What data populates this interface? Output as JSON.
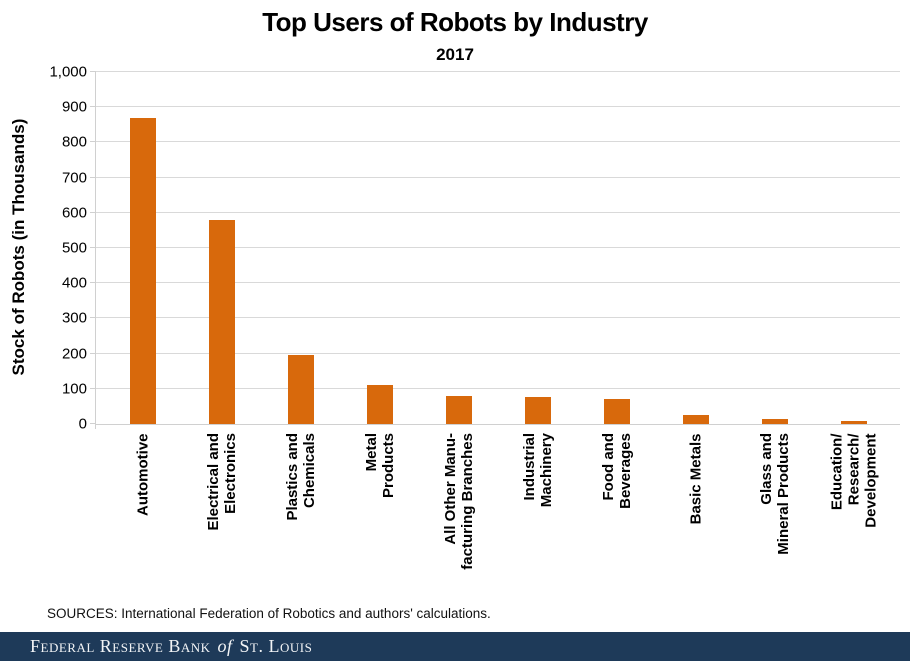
{
  "chart": {
    "title": "Top Users of Robots by Industry",
    "subtitle": "2017",
    "y_axis_title": "Stock of Robots (in Thousands)"
  },
  "chart_data": {
    "type": "bar",
    "title": "Top Users of Robots by Industry",
    "subtitle": "2017",
    "xlabel": "",
    "ylabel": "Stock of Robots (in Thousands)",
    "ylim": [
      0,
      1000
    ],
    "ytick_interval": 100,
    "ytick_labels": [
      "1,000",
      "900",
      "800",
      "700",
      "600",
      "500",
      "400",
      "300",
      "200",
      "100",
      "0"
    ],
    "grid": "horizontal",
    "legend": "none",
    "bar_color": "#d8690c",
    "gridline_color": "#d9d9d9",
    "axis_line_color": "#d0d0d0",
    "categories": [
      "Automotive",
      "Electrical and Electronics",
      "Plastics and Chemicals",
      "Metal Products",
      "All Other Manufacturing Branches",
      "Industrial Machinery",
      "Food and Beverages",
      "Basic Metals",
      "Glass and Mineral Products",
      "Education/Research/Development"
    ],
    "category_label_lines": [
      [
        "Automotive"
      ],
      [
        "Electrical and",
        "Electronics"
      ],
      [
        "Plastics and",
        "Chemicals"
      ],
      [
        "Metal",
        "Products"
      ],
      [
        "All Other Manu-",
        "facturing Branches"
      ],
      [
        "Industrial",
        "Machinery"
      ],
      [
        "Food and",
        "Beverages"
      ],
      [
        "Basic Metals"
      ],
      [
        "Glass and",
        "Mineral Products"
      ],
      [
        "Education/",
        "Research/",
        "Development"
      ]
    ],
    "values": [
      870,
      580,
      195,
      110,
      80,
      77,
      70,
      25,
      13,
      9
    ]
  },
  "footer": {
    "sources": "SOURCES: International Federation of Robotics and authors' calculations.",
    "banner_pre": "Federal Reserve Bank",
    "banner_of": "of",
    "banner_post": "St. Louis"
  }
}
